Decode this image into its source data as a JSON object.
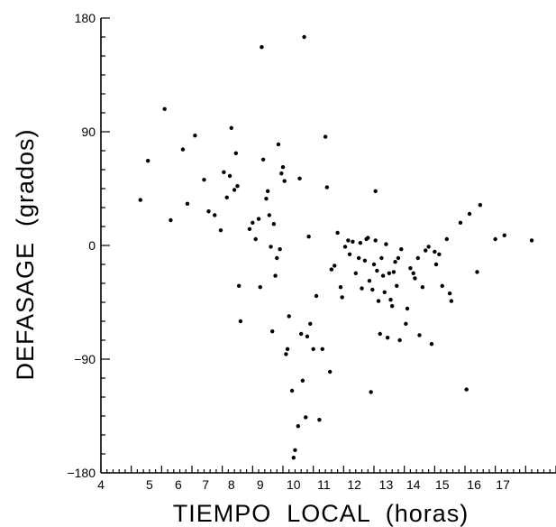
{
  "chart_data": {
    "type": "scatter",
    "title": "",
    "xlabel": "TIEMPO  LOCAL  (horas)",
    "ylabel": "DEFASAGE  (grados)",
    "xlim": [
      4,
      19
    ],
    "ylim": [
      -180,
      180
    ],
    "grid": false,
    "x_ticks": [
      4,
      5,
      6,
      7,
      8,
      9,
      10,
      11,
      12,
      13,
      14,
      15,
      16,
      17,
      18,
      19
    ],
    "x_tick_labels": [
      {
        "value": 4,
        "label": "4"
      },
      {
        "value": 5.6,
        "label": "5"
      },
      {
        "value": 6.55,
        "label": "6"
      },
      {
        "value": 7.45,
        "label": "7"
      },
      {
        "value": 8.3,
        "label": "8"
      },
      {
        "value": 9.25,
        "label": "9"
      },
      {
        "value": 10.35,
        "label": "10"
      },
      {
        "value": 11.35,
        "label": "11"
      },
      {
        "value": 12.35,
        "label": "12"
      },
      {
        "value": 13.4,
        "label": "13"
      },
      {
        "value": 14.3,
        "label": "14"
      },
      {
        "value": 15.25,
        "label": "15"
      },
      {
        "value": 16.3,
        "label": "16"
      },
      {
        "value": 17.25,
        "label": "17"
      }
    ],
    "y_tick_labels": [
      {
        "value": 180,
        "label": "180"
      },
      {
        "value": 90,
        "label": "90"
      },
      {
        "value": 0,
        "label": "0"
      },
      {
        "value": -90,
        "label": "−90"
      },
      {
        "value": -180,
        "label": "−180"
      }
    ],
    "series": [
      {
        "points": [
          [
            5.3,
            36
          ],
          [
            5.55,
            67
          ],
          [
            6.1,
            108
          ],
          [
            6.3,
            20
          ],
          [
            6.7,
            76
          ],
          [
            6.85,
            33
          ],
          [
            7.1,
            87
          ],
          [
            7.4,
            52
          ],
          [
            7.55,
            27
          ],
          [
            7.75,
            24
          ],
          [
            7.95,
            12
          ],
          [
            8.05,
            58
          ],
          [
            8.15,
            38
          ],
          [
            8.25,
            55
          ],
          [
            8.3,
            93
          ],
          [
            8.4,
            44
          ],
          [
            8.45,
            73
          ],
          [
            8.5,
            47
          ],
          [
            8.55,
            -32
          ],
          [
            8.6,
            -60
          ],
          [
            8.9,
            13
          ],
          [
            9.0,
            18
          ],
          [
            9.1,
            5
          ],
          [
            9.2,
            21
          ],
          [
            9.25,
            -33
          ],
          [
            9.3,
            157
          ],
          [
            9.35,
            68
          ],
          [
            9.45,
            37
          ],
          [
            9.5,
            43
          ],
          [
            9.55,
            24
          ],
          [
            9.6,
            -1
          ],
          [
            9.65,
            -68
          ],
          [
            9.7,
            17
          ],
          [
            9.75,
            -24
          ],
          [
            9.8,
            -10
          ],
          [
            9.85,
            80
          ],
          [
            9.9,
            -3
          ],
          [
            9.95,
            57
          ],
          [
            10.0,
            62
          ],
          [
            10.05,
            51
          ],
          [
            10.1,
            -86
          ],
          [
            10.15,
            -82
          ],
          [
            10.2,
            -56
          ],
          [
            10.3,
            -115
          ],
          [
            10.35,
            -168
          ],
          [
            10.4,
            -162
          ],
          [
            10.5,
            -143
          ],
          [
            10.55,
            53
          ],
          [
            10.6,
            -70
          ],
          [
            10.65,
            -107
          ],
          [
            10.7,
            165
          ],
          [
            10.75,
            -136
          ],
          [
            10.8,
            -72
          ],
          [
            10.85,
            7
          ],
          [
            10.9,
            -62
          ],
          [
            11.0,
            -82
          ],
          [
            11.1,
            -40
          ],
          [
            11.2,
            -138
          ],
          [
            11.3,
            -82
          ],
          [
            11.4,
            86
          ],
          [
            11.45,
            46
          ],
          [
            11.55,
            -100
          ],
          [
            11.6,
            -19
          ],
          [
            11.7,
            -16
          ],
          [
            11.8,
            10
          ],
          [
            11.9,
            -33
          ],
          [
            11.95,
            -41
          ],
          [
            12.05,
            -1
          ],
          [
            12.15,
            4
          ],
          [
            12.2,
            -7
          ],
          [
            12.3,
            3
          ],
          [
            12.4,
            -22
          ],
          [
            12.5,
            -10
          ],
          [
            12.55,
            2
          ],
          [
            12.6,
            -34
          ],
          [
            12.7,
            -12
          ],
          [
            12.75,
            5
          ],
          [
            12.8,
            6
          ],
          [
            12.85,
            -28
          ],
          [
            12.9,
            -116
          ],
          [
            12.95,
            -35
          ],
          [
            13.0,
            -15
          ],
          [
            13.05,
            4
          ],
          [
            13.1,
            -20
          ],
          [
            13.15,
            -44
          ],
          [
            13.2,
            -70
          ],
          [
            13.25,
            -10
          ],
          [
            13.3,
            -24
          ],
          [
            13.35,
            -37
          ],
          [
            13.4,
            1
          ],
          [
            13.45,
            -73
          ],
          [
            13.5,
            -22
          ],
          [
            13.55,
            -43
          ],
          [
            13.6,
            -48
          ],
          [
            13.65,
            -21
          ],
          [
            13.7,
            -13
          ],
          [
            13.75,
            -32
          ],
          [
            13.8,
            -10
          ],
          [
            13.85,
            -75
          ],
          [
            13.9,
            -3
          ],
          [
            14.05,
            -62
          ],
          [
            14.1,
            -50
          ],
          [
            14.2,
            -18
          ],
          [
            14.3,
            -22
          ],
          [
            14.35,
            -26
          ],
          [
            14.45,
            -10
          ],
          [
            14.5,
            -71
          ],
          [
            14.6,
            -33
          ],
          [
            14.7,
            -4
          ],
          [
            14.8,
            -1
          ],
          [
            14.9,
            -78
          ],
          [
            15.0,
            -5
          ],
          [
            15.05,
            -15
          ],
          [
            15.15,
            -7
          ],
          [
            15.25,
            -32
          ],
          [
            15.4,
            5
          ],
          [
            15.5,
            -38
          ],
          [
            15.55,
            -44
          ],
          [
            15.85,
            18
          ],
          [
            16.05,
            -114
          ],
          [
            16.15,
            25
          ],
          [
            16.4,
            -21
          ],
          [
            16.5,
            32
          ],
          [
            17.0,
            5
          ],
          [
            17.3,
            8
          ],
          [
            18.2,
            4
          ],
          [
            13.05,
            43
          ]
        ]
      }
    ]
  }
}
